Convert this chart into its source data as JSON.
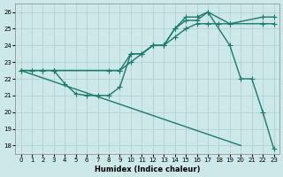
{
  "xlabel": "Humidex (Indice chaleur)",
  "background_color": "#cde8e8",
  "grid_color": "#b0cccc",
  "line_color": "#1a7a6e",
  "xlim": [
    -0.5,
    23.5
  ],
  "ylim": [
    17.5,
    26.5
  ],
  "yticks": [
    18,
    19,
    20,
    21,
    22,
    23,
    24,
    25,
    26
  ],
  "xticks": [
    0,
    1,
    2,
    3,
    4,
    5,
    6,
    7,
    8,
    9,
    10,
    11,
    12,
    13,
    14,
    15,
    16,
    17,
    18,
    19,
    20,
    21,
    22,
    23
  ],
  "line1_x": [
    0,
    1,
    2,
    3,
    9,
    10,
    11,
    12,
    13,
    14,
    15,
    16,
    17,
    19,
    22,
    23
  ],
  "line1_y": [
    22.5,
    22.5,
    22.5,
    22.5,
    22.5,
    23.5,
    23.5,
    24.0,
    24.0,
    25.0,
    25.7,
    25.7,
    26.0,
    25.3,
    25.7,
    25.7
  ],
  "line2_x": [
    0,
    1,
    2,
    3,
    8,
    9,
    10,
    11,
    12,
    13,
    14,
    15,
    16,
    17,
    18,
    19,
    22,
    23
  ],
  "line2_y": [
    22.5,
    22.5,
    22.5,
    22.5,
    22.5,
    22.5,
    23.0,
    23.5,
    24.0,
    24.0,
    24.5,
    25.0,
    25.3,
    25.3,
    25.3,
    25.3,
    25.3,
    25.3
  ],
  "line3_x": [
    3,
    4,
    5,
    6,
    7,
    8,
    9,
    10,
    11,
    12,
    13,
    14,
    15,
    16,
    17,
    19,
    20,
    21,
    22,
    23
  ],
  "line3_y": [
    22.5,
    21.7,
    21.1,
    21.0,
    21.0,
    21.0,
    21.5,
    23.5,
    23.5,
    24.0,
    24.0,
    25.0,
    25.5,
    25.5,
    26.0,
    24.0,
    22.0,
    22.0,
    20.0,
    17.8
  ],
  "line4_x": [
    0,
    20
  ],
  "line4_y": [
    22.5,
    18.0
  ],
  "marker_size": 4,
  "line_width": 1.0
}
